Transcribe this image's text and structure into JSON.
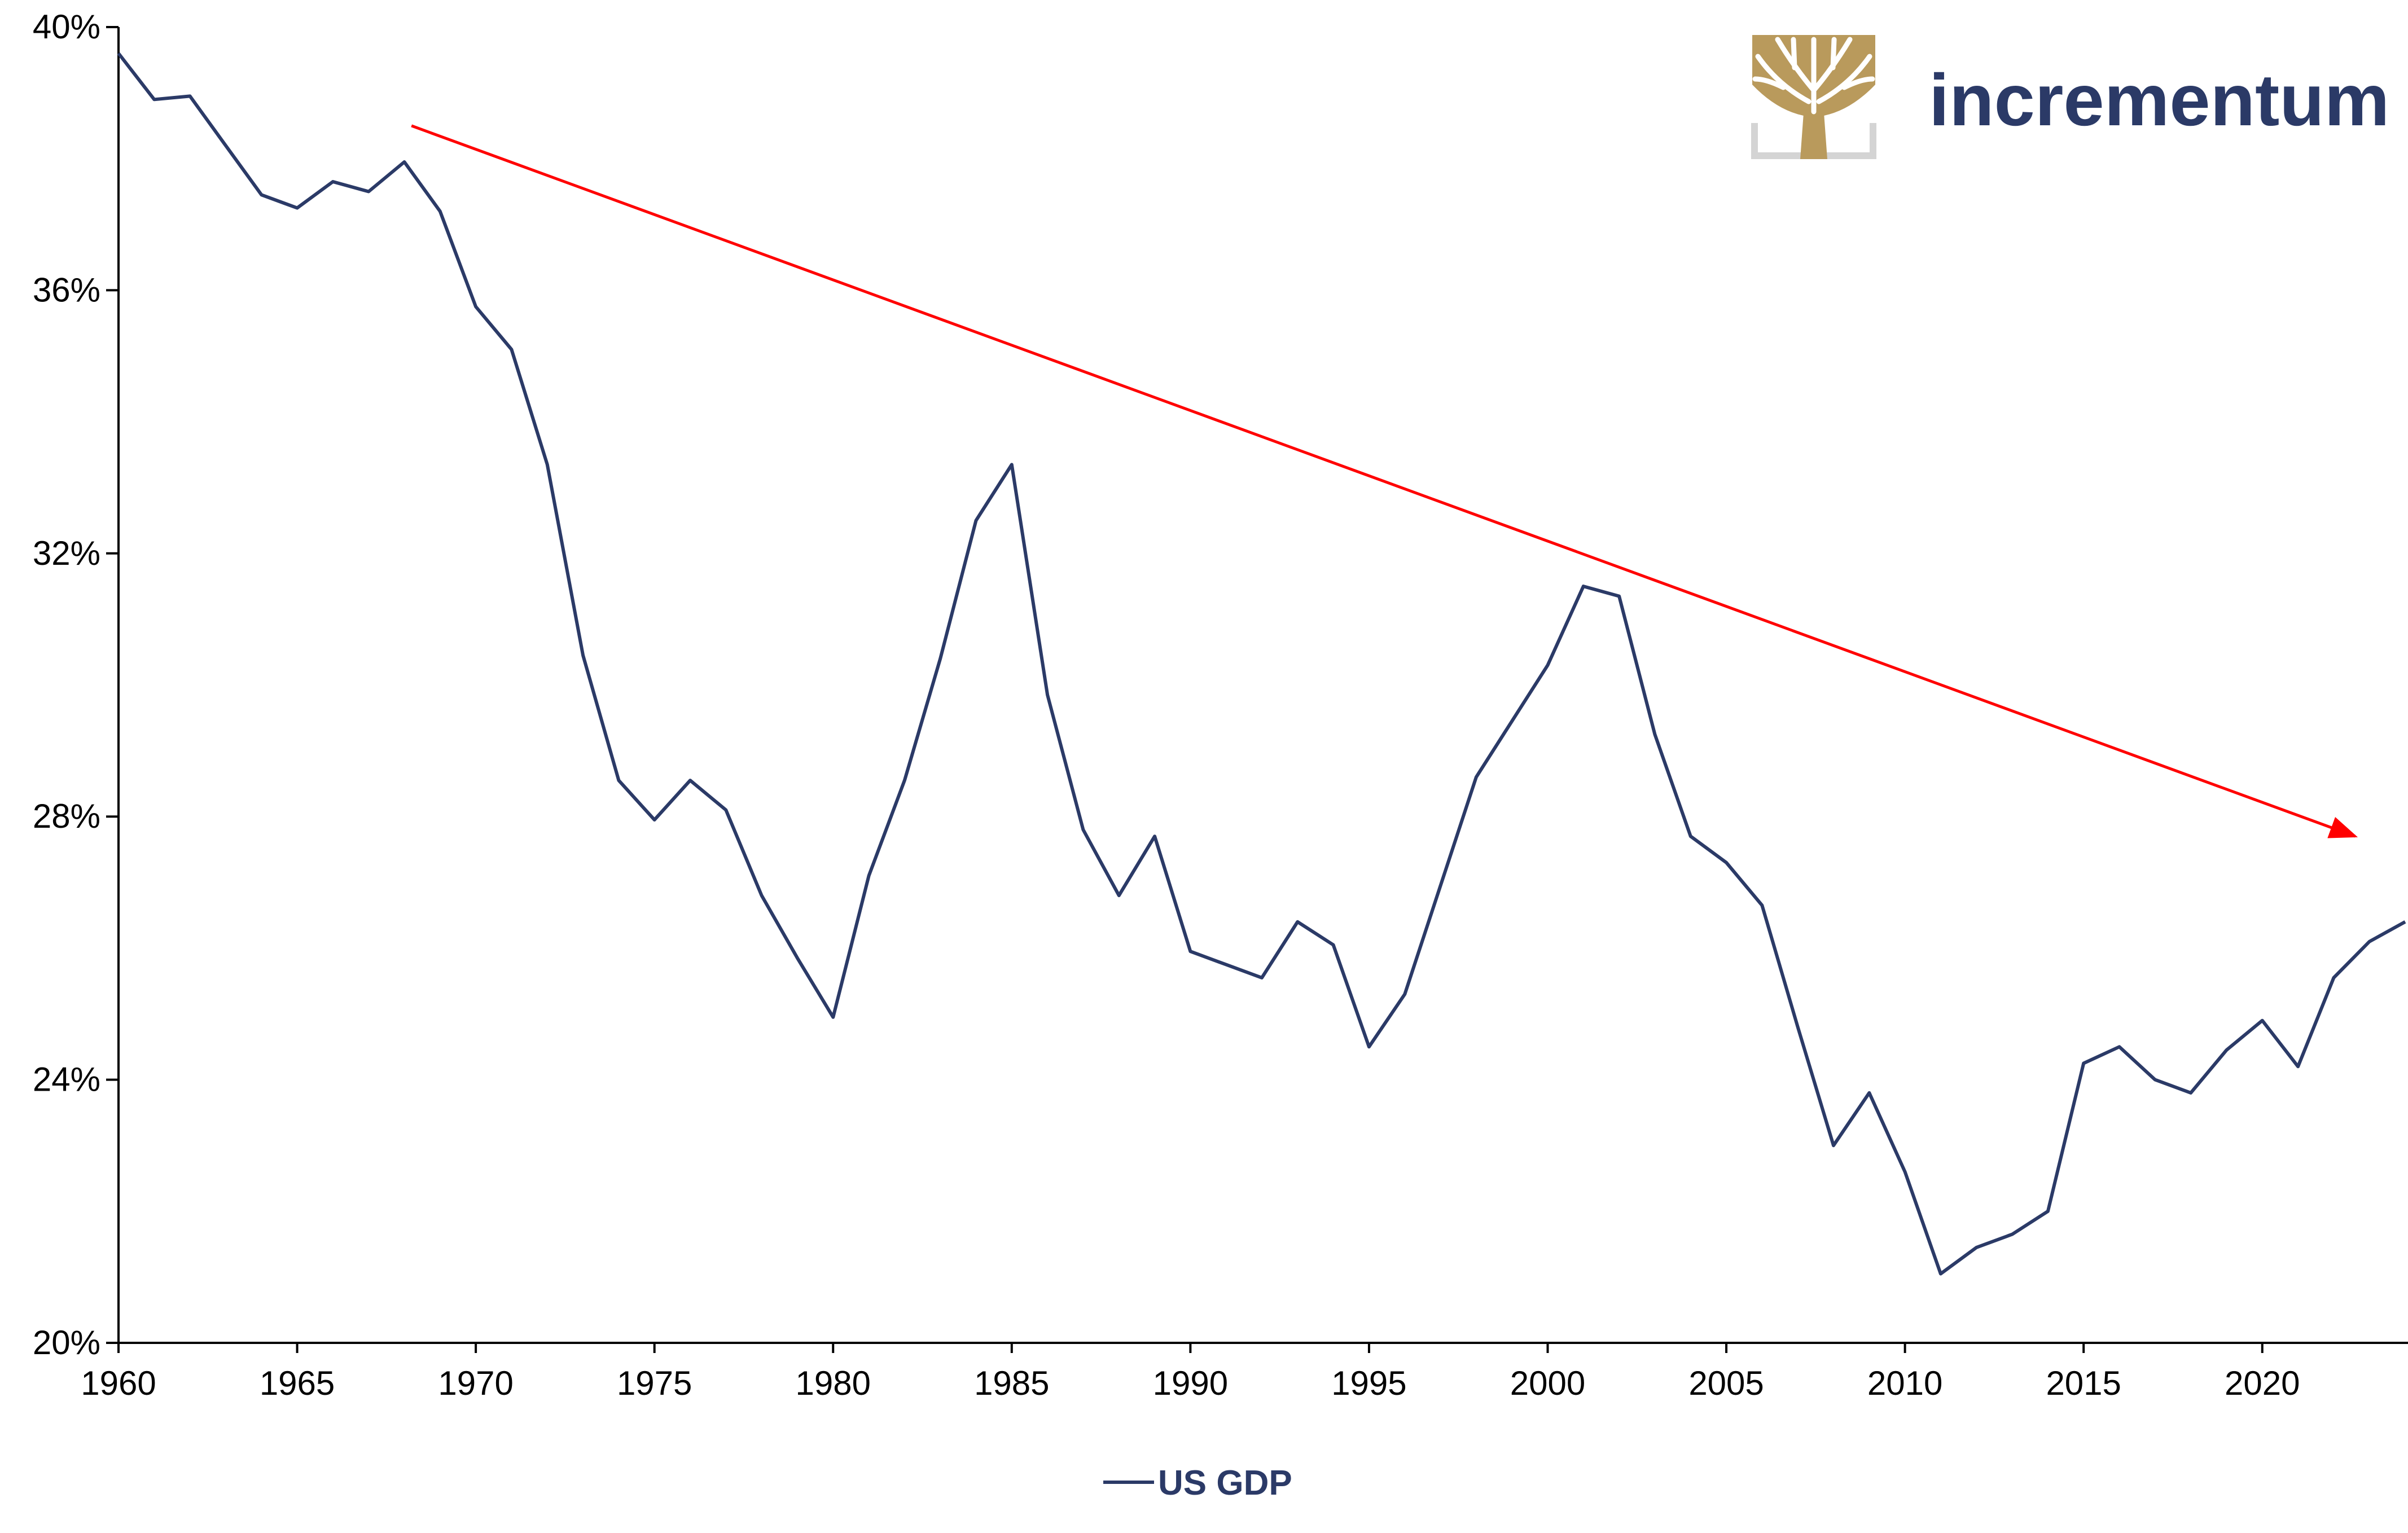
{
  "brand": {
    "name": "incrementum",
    "text_color": "#2b3a67",
    "logo_gold": "#b99a5c",
    "logo_gray": "#d4d4d4"
  },
  "chart_data": {
    "type": "line",
    "title": "",
    "xlabel": "",
    "ylabel": "",
    "xlim": [
      1960,
      2024
    ],
    "ylim": [
      20,
      40
    ],
    "x_ticks": [
      1960,
      1965,
      1970,
      1975,
      1980,
      1985,
      1990,
      1995,
      2000,
      2005,
      2010,
      2015,
      2020
    ],
    "x_tick_labels": [
      "1960",
      "1965",
      "1970",
      "1975",
      "1980",
      "1985",
      "1990",
      "1995",
      "2000",
      "2005",
      "2010",
      "2015",
      "2020"
    ],
    "y_ticks": [
      20,
      24,
      28,
      32,
      36,
      40
    ],
    "y_tick_labels": [
      "20%",
      "24%",
      "28%",
      "32%",
      "36%",
      "40%"
    ],
    "grid": false,
    "legend_position": "bottom-center",
    "series": [
      {
        "name": "US GDP",
        "color": "#2b3a67",
        "x": [
          1960,
          1961,
          1962,
          1963,
          1964,
          1965,
          1966,
          1967,
          1968,
          1969,
          1970,
          1971,
          1972,
          1973,
          1974,
          1975,
          1976,
          1977,
          1978,
          1979,
          1980,
          1981,
          1982,
          1983,
          1984,
          1985,
          1986,
          1987,
          1988,
          1989,
          1990,
          1991,
          1992,
          1993,
          1994,
          1995,
          1996,
          1997,
          1998,
          1999,
          2000,
          2001,
          2002,
          2003,
          2004,
          2005,
          2006,
          2007,
          2008,
          2009,
          2010,
          2011,
          2012,
          2013,
          2014,
          2015,
          2016,
          2017,
          2018,
          2019,
          2020,
          2021,
          2022,
          2023,
          2024
        ],
        "values": [
          39.6,
          38.9,
          38.95,
          38.2,
          37.45,
          37.25,
          37.65,
          37.5,
          37.95,
          37.2,
          35.75,
          35.1,
          33.35,
          30.45,
          28.55,
          27.95,
          28.55,
          28.1,
          26.8,
          25.85,
          24.95,
          27.1,
          28.55,
          30.4,
          32.5,
          33.35,
          29.85,
          27.8,
          26.8,
          27.7,
          25.95,
          25.75,
          25.55,
          26.4,
          26.05,
          24.5,
          25.3,
          26.95,
          28.6,
          29.45,
          30.3,
          31.5,
          31.35,
          29.25,
          27.7,
          27.3,
          26.65,
          24.8,
          23.0,
          23.8,
          22.6,
          21.05,
          21.45,
          21.65,
          22.0,
          24.25,
          24.5,
          24.0,
          23.8,
          24.45,
          24.9,
          24.2,
          25.55,
          26.1,
          26.4
        ]
      }
    ],
    "trend_arrow": {
      "color": "#ff0000",
      "start": {
        "x": 1968.2,
        "y": 38.5
      },
      "end": {
        "x": 2022.6,
        "y": 27.7
      }
    }
  }
}
